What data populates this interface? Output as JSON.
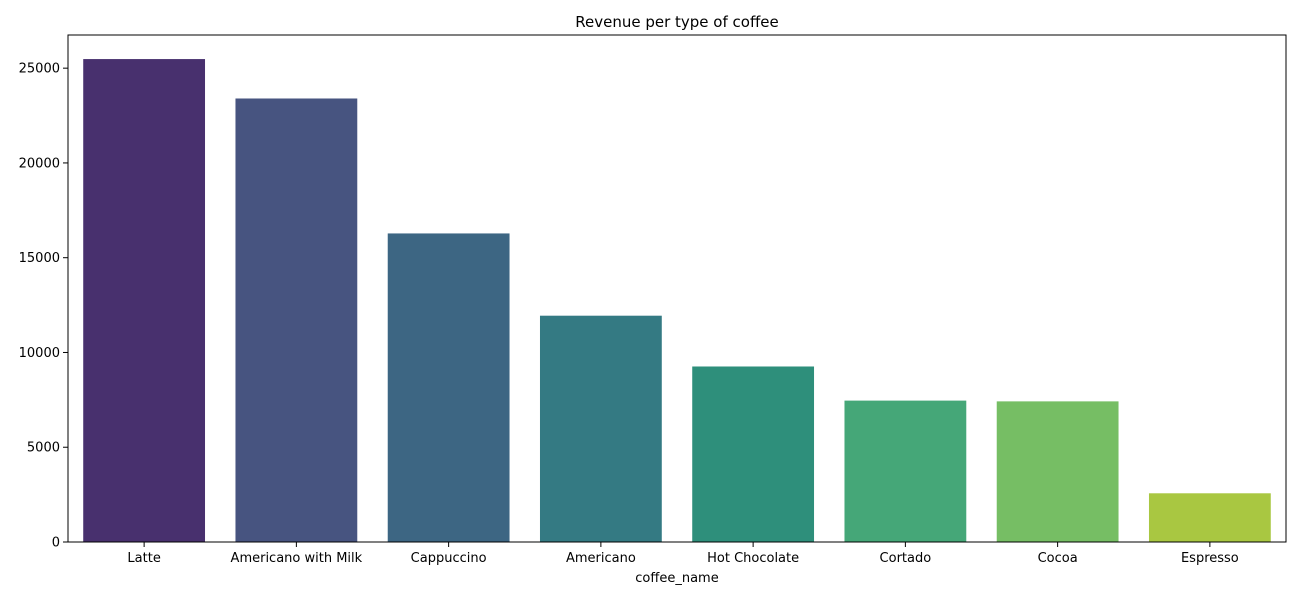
{
  "chart_data": {
    "type": "bar",
    "title": "Revenue per type of coffee",
    "xlabel": "coffee_name",
    "ylabel": "",
    "categories": [
      "Latte",
      "Americano with Milk",
      "Cappuccino",
      "Americano",
      "Hot Chocolate",
      "Cortado",
      "Cocoa",
      "Espresso"
    ],
    "values": [
      25480,
      23400,
      16280,
      11940,
      9260,
      7460,
      7420,
      2570
    ],
    "colors": [
      "#48306e",
      "#475480",
      "#3d6683",
      "#347a83",
      "#2e8f7b",
      "#45a778",
      "#76be64",
      "#a9c741"
    ],
    "ylim": [
      0,
      26750
    ],
    "yticks": [
      0,
      5000,
      10000,
      15000,
      20000,
      25000
    ],
    "grid": false,
    "legend": "none"
  }
}
